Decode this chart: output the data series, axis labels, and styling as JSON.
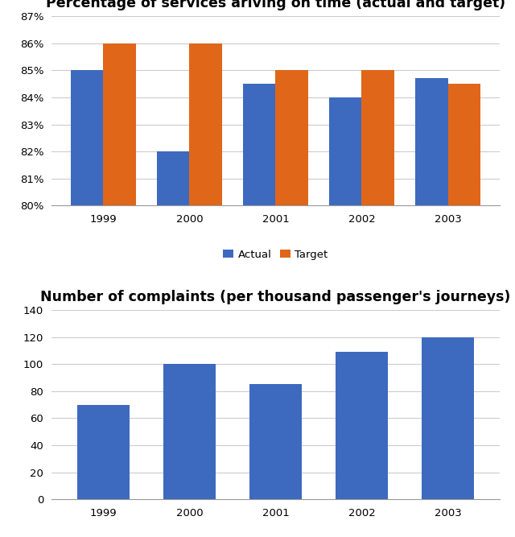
{
  "years": [
    "1999",
    "2000",
    "2001",
    "2002",
    "2003"
  ],
  "actual": [
    85,
    82,
    84.5,
    84,
    84.7
  ],
  "target": [
    86,
    86,
    85,
    85,
    84.5
  ],
  "complaints": [
    70,
    100,
    85,
    109,
    120
  ],
  "bar_color_actual": "#3d6abf",
  "bar_color_target": "#e0661a",
  "bar_color_complaints": "#3d6abf",
  "title1": "Percentage of services ariving on time (actual and target)",
  "title2": "Number of complaints (per thousand passenger's journeys)",
  "ylim1": [
    80,
    87
  ],
  "yticks1": [
    80,
    81,
    82,
    83,
    84,
    85,
    86,
    87
  ],
  "ylim2": [
    0,
    140
  ],
  "yticks2": [
    0,
    20,
    40,
    60,
    80,
    100,
    120,
    140
  ],
  "legend_actual": "Actual",
  "legend_target": "Target",
  "bg_color": "#ffffff",
  "grid_color": "#cccccc",
  "title_fontsize": 12.5,
  "tick_fontsize": 9.5,
  "bar_width": 0.38
}
